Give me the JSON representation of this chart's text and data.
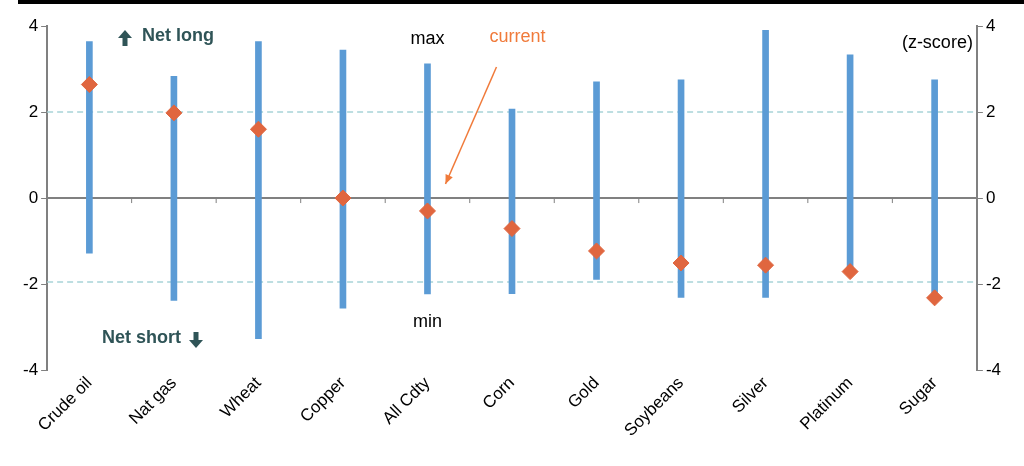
{
  "chart_data": {
    "type": "bar",
    "y2label": "(z-score)",
    "categories": [
      "Crude oil",
      "Nat gas",
      "Wheat",
      "Copper",
      "All Cdty",
      "Corn",
      "Gold",
      "Soybeans",
      "Silver",
      "Platinum",
      "Sugar"
    ],
    "series": [
      {
        "color": "#5b9bd5",
        "base": [
          -1.28,
          -2.38,
          -3.27,
          -2.56,
          -2.23,
          -2.22,
          -1.89,
          -2.31,
          -2.31,
          -1.7,
          -2.2
        ],
        "values": [
          4.92,
          5.21,
          6.91,
          6.0,
          5.35,
          4.29,
          4.59,
          5.06,
          6.21,
          5.03,
          4.95
        ]
      },
      {
        "type": "scatter",
        "color": "#e0663f",
        "x": [
          "Crude oil",
          "Nat gas",
          "Wheat",
          "Copper",
          "All Cdty",
          "Corn",
          "Gold",
          "Soybeans",
          "Silver",
          "Platinum",
          "Sugar"
        ],
        "values": [
          2.64,
          1.98,
          1.6,
          0,
          -0.3,
          -0.71,
          -1.23,
          -1.51,
          -1.56,
          -1.71,
          -2.32
        ]
      }
    ],
    "ylim": [
      -4,
      4
    ],
    "yticks": [
      -4,
      -2,
      0,
      2,
      4
    ],
    "y2lim": [
      -4,
      4
    ],
    "y2ticks": [
      -4,
      -2,
      0,
      2,
      4
    ],
    "ref_lines": [
      {
        "axis": "y",
        "value": 2,
        "color": "#a8d4d8",
        "line_style": "dashed"
      },
      {
        "axis": "y",
        "value": -1.95,
        "color": "#a8d4d8",
        "line_style": "dashed"
      }
    ],
    "annotations": [
      "Net long",
      "Net short",
      {
        "text": "max",
        "x": "All Cdty",
        "y": 3.12
      },
      {
        "text": "min",
        "x": "All Cdty",
        "y": -2.23
      },
      "current"
    ],
    "marker": "diamond",
    "grid": false,
    "legend": false
  }
}
